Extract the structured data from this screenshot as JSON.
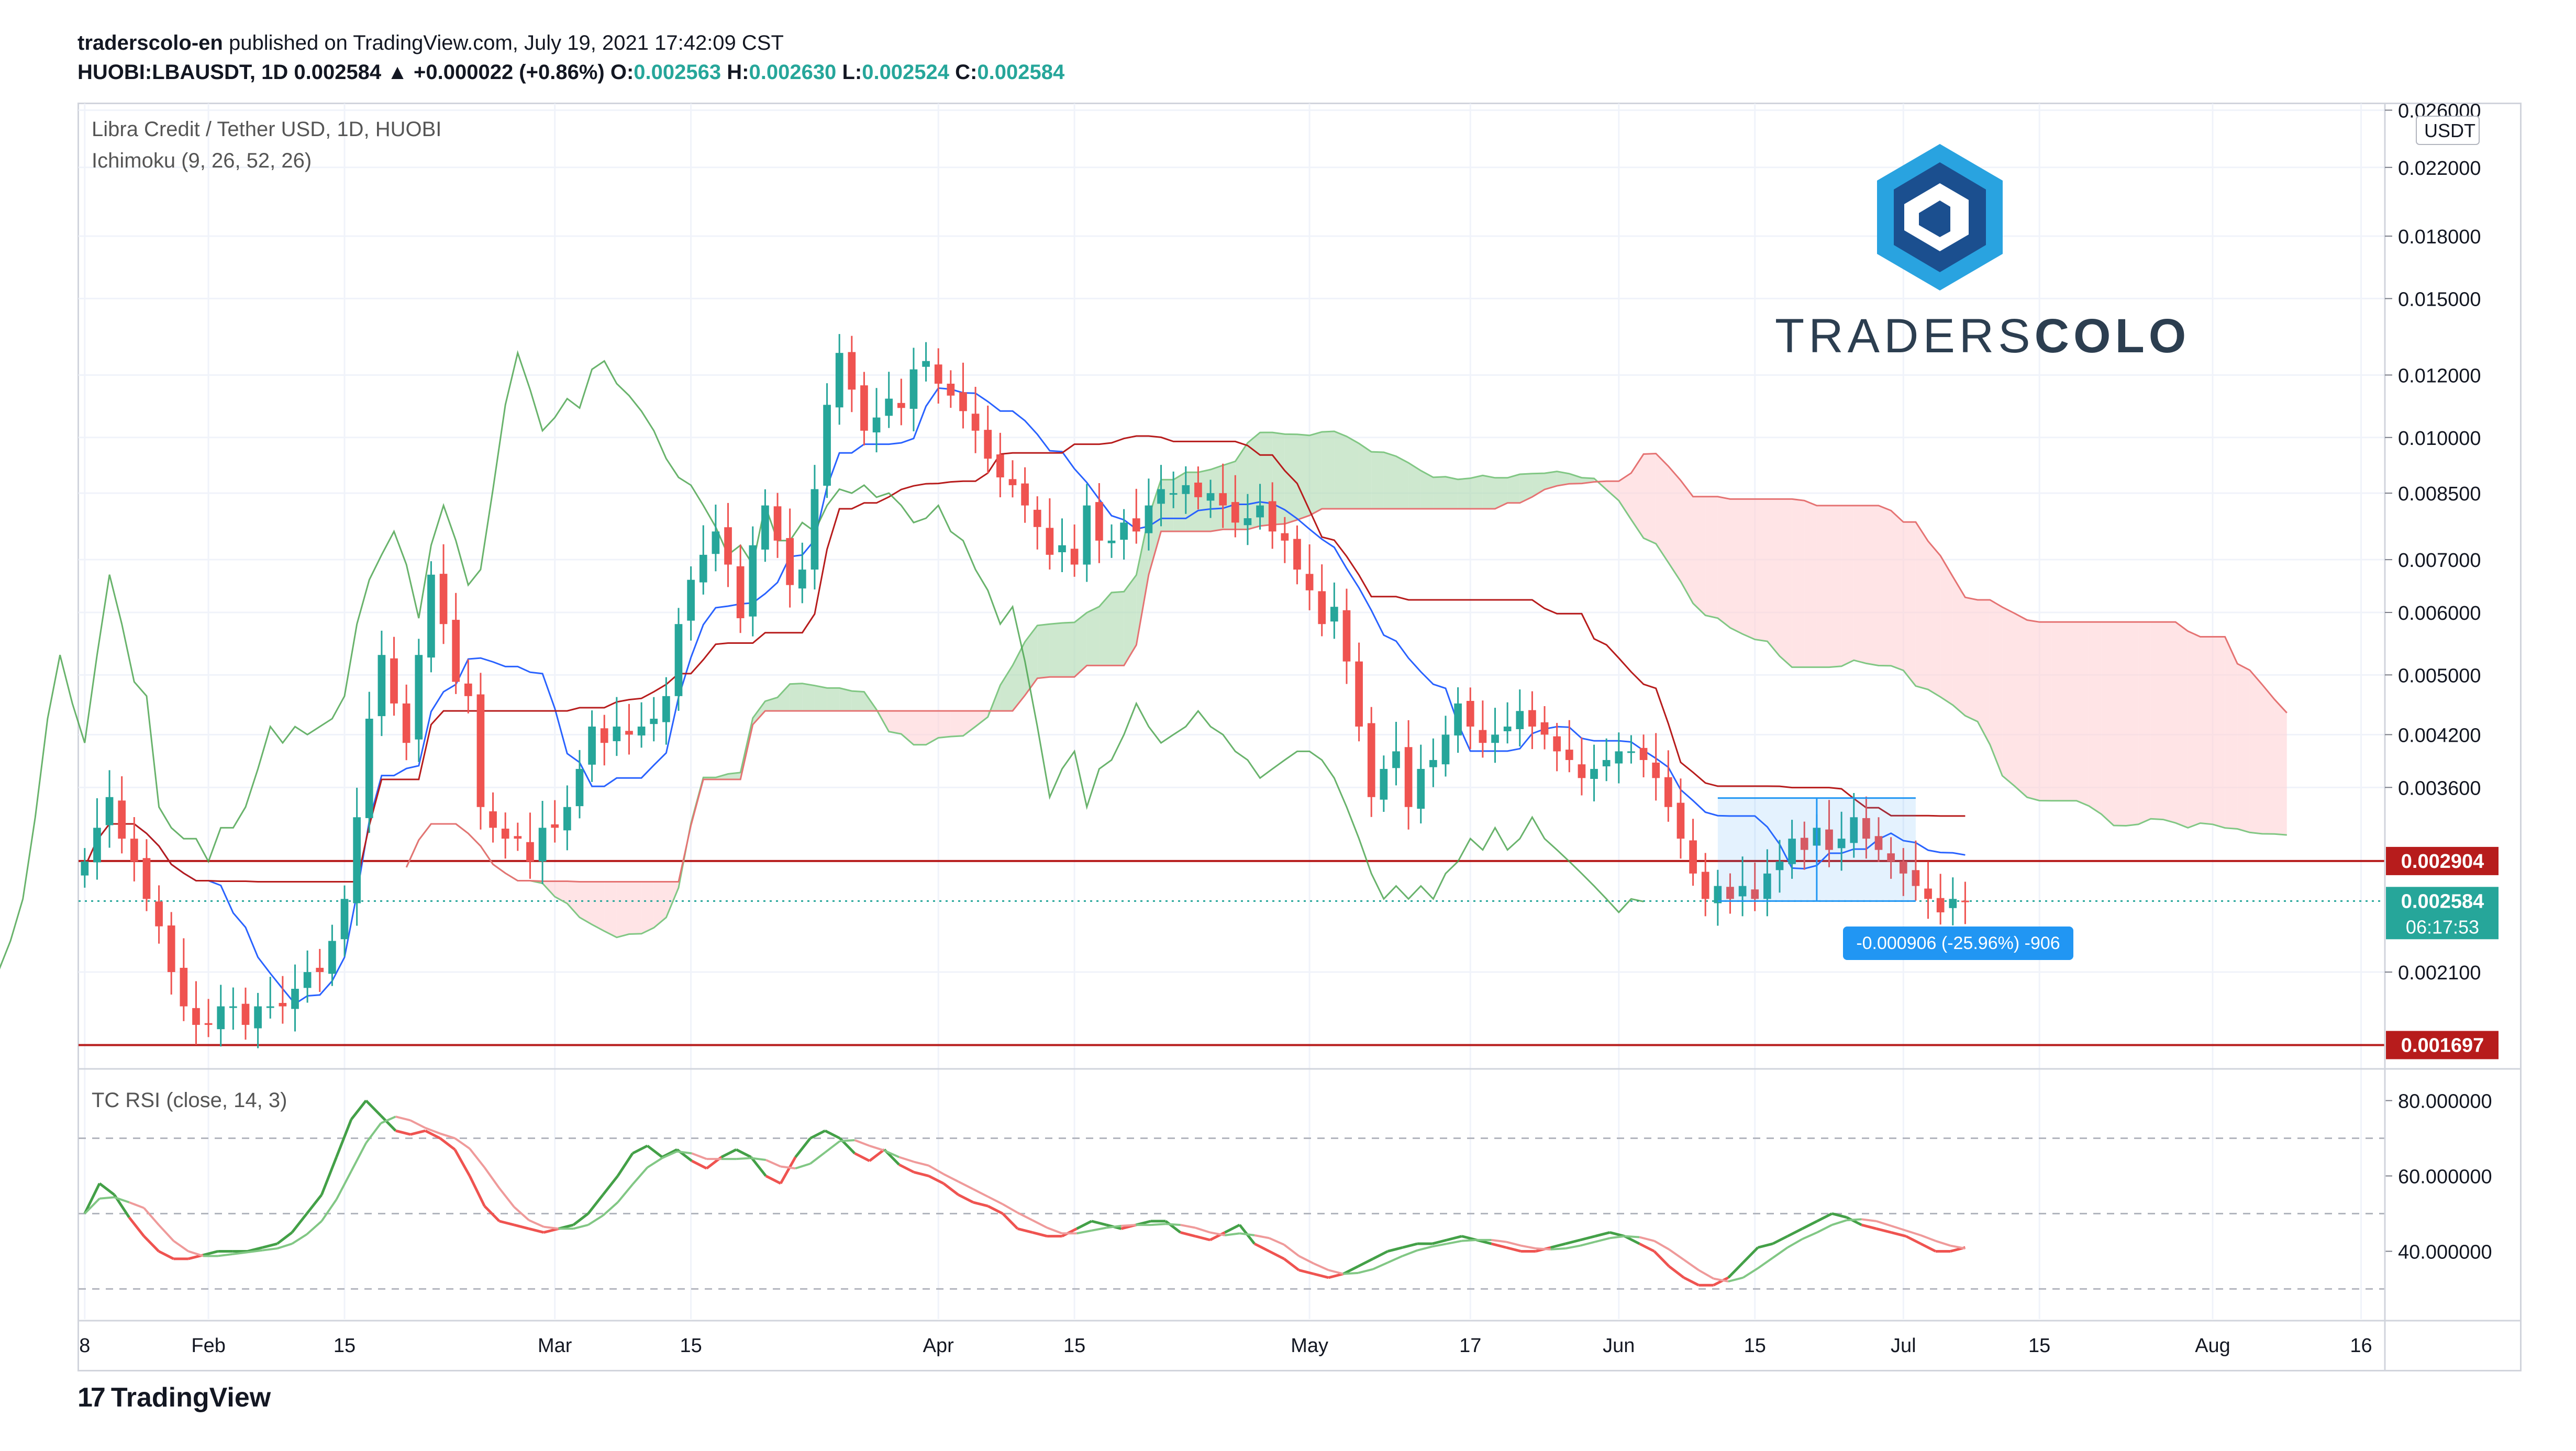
{
  "header": {
    "publisher": "traderscolo-en",
    "published_text": " published on TradingView.com, July 19, 2021 17:42:09 CST",
    "symbol_line": "HUOBI:LBAUSDT, 1D  0.002584  ▲ +0.000022 (+0.86%)",
    "o_label": "O:",
    "o_value": "0.002563",
    "h_label": "H:",
    "h_value": "0.002630",
    "l_label": "L:",
    "l_value": "0.002524",
    "c_label": "C:",
    "c_value": "0.002584"
  },
  "pane_main": {
    "title": "Libra Credit / Tether USD, 1D, HUOBI",
    "indicator": "Ichimoku (9, 26, 52, 26)",
    "currency": "USDT"
  },
  "pane_rsi": {
    "title": "TC RSI (close, 14, 3)"
  },
  "brand": {
    "name_light": "TRADERS",
    "name_bold": "COLO"
  },
  "footer": {
    "logo_text": "TradingView",
    "mark": "17"
  },
  "price_axis": {
    "ticks": [
      "0.026000",
      "0.022000",
      "0.018000",
      "0.015000",
      "0.012000",
      "0.010000",
      "0.008500",
      "0.007000",
      "0.006000",
      "0.005000",
      "0.004200",
      "0.003600",
      "0.002904",
      "0.002584",
      "0.002100",
      "0.001697"
    ],
    "tick_values": [
      0.026,
      0.022,
      0.018,
      0.015,
      0.012,
      0.01,
      0.0085,
      0.007,
      0.006,
      0.005,
      0.0042,
      0.0036,
      0.002904,
      0.002584,
      0.0021,
      0.001697
    ]
  },
  "rsi_axis": {
    "ticks": [
      "80.000000",
      "60.000000",
      "40.000000"
    ],
    "tick_values": [
      80,
      60,
      40
    ]
  },
  "time_axis": {
    "labels": [
      "8",
      "Feb",
      "15",
      "Mar",
      "15",
      "Apr",
      "15",
      "May",
      "17",
      "Jun",
      "15",
      "Jul",
      "15",
      "Aug",
      "16"
    ],
    "days": [
      0,
      10,
      21,
      38,
      49,
      69,
      80,
      99,
      112,
      124,
      135,
      147,
      158,
      172,
      184
    ]
  },
  "levels": {
    "upper": {
      "value": 0.002904,
      "label": "0.002904",
      "color": "#b71c1c"
    },
    "lower": {
      "value": 0.001697,
      "label": "0.001697",
      "color": "#b71c1c"
    },
    "current": {
      "value": 0.002584,
      "label": "0.002584",
      "countdown": "06:17:53",
      "color": "#26a69a"
    }
  },
  "measure": {
    "label": "-0.000906 (-25.96%) -906",
    "color": "#2196f3"
  },
  "colors": {
    "up": "#26a69a",
    "down": "#ef5350",
    "tenkan": "#2962ff",
    "kijun": "#b71c1c",
    "chikou": "#43a047",
    "cloud_bull": "#a5d6a7",
    "cloud_bear": "#ffcdd2"
  },
  "chart_data": [
    {
      "type": "candlestick",
      "title": "Libra Credit / Tether USD, 1D, HUOBI",
      "scale": "log",
      "ylim": [
        0.0016,
        0.0265
      ],
      "x_start": "2021-01-23",
      "closes_approx": [
        0.0029,
        0.0032,
        0.0035,
        0.0031,
        0.0029,
        0.0026,
        0.0024,
        0.0021,
        0.0019,
        0.0018,
        0.0018,
        0.0019,
        0.0019,
        0.0018,
        0.0019,
        0.0019,
        0.0019,
        0.002,
        0.0021,
        0.0021,
        0.0023,
        0.0026,
        0.0033,
        0.0044,
        0.0053,
        0.0046,
        0.0041,
        0.0053,
        0.0067,
        0.0058,
        0.0049,
        0.0047,
        0.0034,
        0.0032,
        0.0031,
        0.0031,
        0.0029,
        0.0032,
        0.0032,
        0.0034,
        0.0038,
        0.0043,
        0.0041,
        0.0043,
        0.0042,
        0.0043,
        0.0044,
        0.0047,
        0.0058,
        0.0066,
        0.0071,
        0.0076,
        0.0069,
        0.0059,
        0.0073,
        0.0082,
        0.0074,
        0.0065,
        0.0068,
        0.0086,
        0.011,
        0.0128,
        0.0115,
        0.0102,
        0.0106,
        0.0112,
        0.0109,
        0.0122,
        0.0125,
        0.0117,
        0.0113,
        0.0108,
        0.0102,
        0.0094,
        0.0089,
        0.0087,
        0.0082,
        0.0077,
        0.0071,
        0.0073,
        0.0069,
        0.0082,
        0.0074,
        0.0074,
        0.0078,
        0.0076,
        0.0082,
        0.0086,
        0.0085,
        0.0087,
        0.0084,
        0.0085,
        0.0082,
        0.0078,
        0.0079,
        0.0082,
        0.0076,
        0.0074,
        0.0068,
        0.0064,
        0.0058,
        0.0061,
        0.0052,
        0.0043,
        0.0035,
        0.0038,
        0.004,
        0.0034,
        0.0038,
        0.0039,
        0.0042,
        0.0046,
        0.0043,
        0.0041,
        0.0042,
        0.0043,
        0.0045,
        0.0043,
        0.0042,
        0.004,
        0.0039,
        0.0037,
        0.0038,
        0.0039,
        0.004,
        0.004,
        0.0039,
        0.0037,
        0.0034,
        0.0031,
        0.0028,
        0.0026,
        0.0027,
        0.0026,
        0.0027,
        0.0026,
        0.0028,
        0.0029,
        0.0031,
        0.003,
        0.0032,
        0.003,
        0.0031,
        0.0033,
        0.0031,
        0.003,
        0.0029,
        0.0028,
        0.0027,
        0.0026,
        0.0025,
        0.0026,
        0.00258
      ]
    },
    {
      "type": "line",
      "title": "TC RSI (close, 14, 3)",
      "ylim": [
        22,
        88
      ],
      "rsi_values": [
        50,
        58,
        55,
        49,
        44,
        40,
        38,
        38,
        39,
        40,
        40,
        40,
        41,
        42,
        45,
        50,
        55,
        65,
        75,
        80,
        76,
        72,
        71,
        72,
        70,
        67,
        60,
        52,
        48,
        47,
        46,
        45,
        46,
        47,
        50,
        55,
        60,
        66,
        68,
        65,
        67,
        64,
        62,
        65,
        67,
        65,
        60,
        58,
        65,
        70,
        72,
        70,
        66,
        64,
        67,
        63,
        61,
        60,
        58,
        55,
        53,
        52,
        50,
        46,
        45,
        44,
        44,
        46,
        48,
        47,
        46,
        47,
        48,
        48,
        45,
        44,
        43,
        45,
        47,
        42,
        40,
        38,
        35,
        34,
        33,
        34,
        36,
        38,
        40,
        41,
        42,
        42,
        43,
        44,
        43,
        42,
        41,
        40,
        40,
        41,
        42,
        43,
        44,
        45,
        44,
        42,
        40,
        36,
        33,
        31,
        31,
        33,
        37,
        41,
        42,
        44,
        46,
        48,
        50,
        49,
        47,
        46,
        45,
        44,
        42,
        40,
        40,
        41
      ]
    }
  ]
}
